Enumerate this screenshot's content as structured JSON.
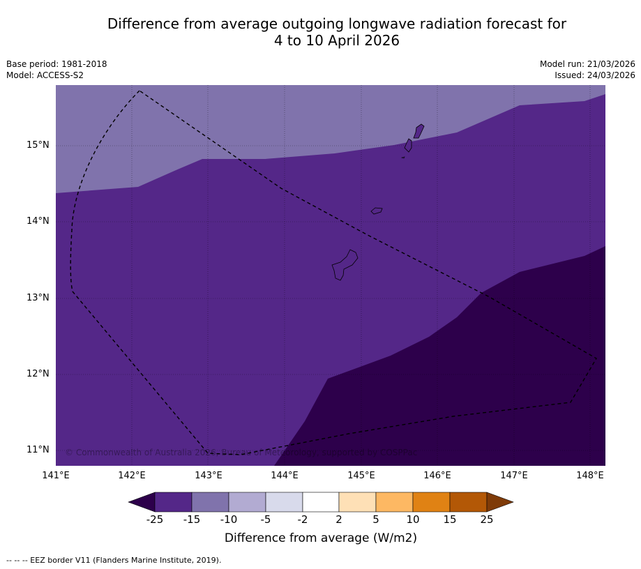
{
  "title": {
    "line1": "Difference from average outgoing longwave radiation forecast for",
    "line2": "4 to 10 April 2026"
  },
  "meta": {
    "base_period": "Base period: 1981-2018",
    "model": "Model: ACCESS-S2",
    "model_run": "Model run: 21/03/2026",
    "issued": "Issued: 24/03/2026"
  },
  "map": {
    "lat_ticks": [
      "15°N",
      "14°N",
      "13°N",
      "12°N",
      "11°N"
    ],
    "lon_ticks": [
      "141°E",
      "142°E",
      "143°E",
      "144°E",
      "145°E",
      "146°E",
      "147°E",
      "148°E"
    ],
    "copyright": "© Commonwealth of Australia 2026, Bureau of Meteorology, supported by COSPPac"
  },
  "colorbar": {
    "tick_labels": [
      "-25",
      "-15",
      "-10",
      "-5",
      "-2",
      "2",
      "5",
      "10",
      "15",
      "25"
    ],
    "colors": [
      "#2d004b",
      "#542788",
      "#8073ac",
      "#b2abd2",
      "#d8daeb",
      "#ffffff",
      "#fee0b6",
      "#fdb863",
      "#e08214",
      "#b35806",
      "#7f3b08"
    ],
    "label": "Difference from average (W/m2)"
  },
  "footnote": "--  --  -- EEZ border V11 (Flanders Marine Institute, 2019)."
}
